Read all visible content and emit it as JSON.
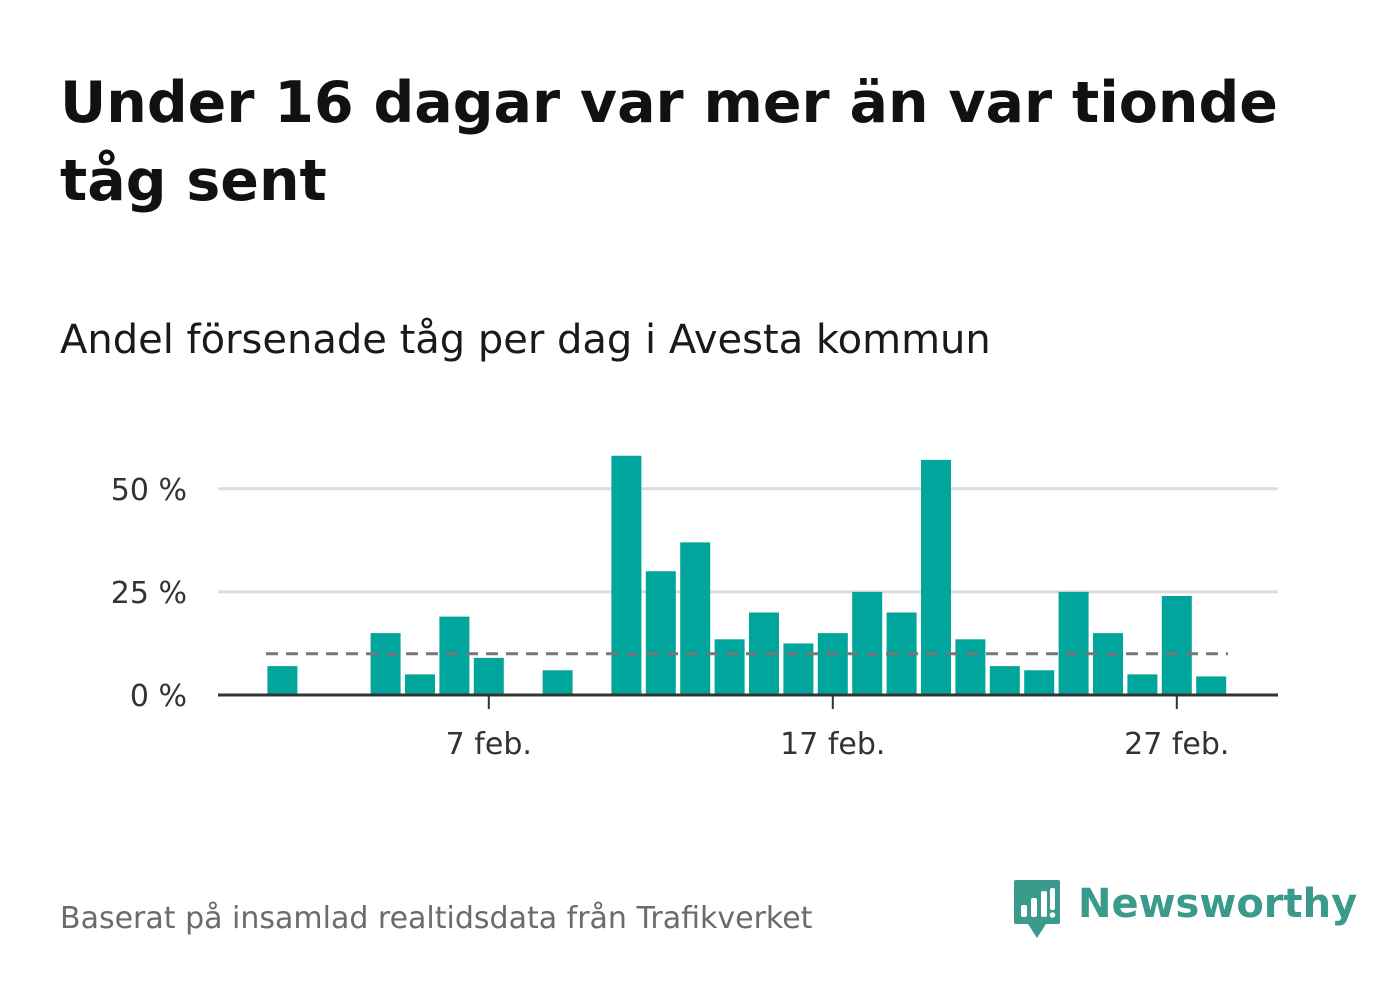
{
  "title": "Under 16 dagar var mer än var tionde tåg sent",
  "subtitle": "Andel försenade tåg per dag i Avesta kommun",
  "source": "Baserat på insamlad realtidsdata från Trafikverket",
  "brand": {
    "name": "Newsworthy",
    "logo_icon": "newsworthy-chart-bubble-icon",
    "color": "#3a9a8c"
  },
  "colors": {
    "bar": "#00a59b",
    "grid": "#dcdcdc",
    "reference_line": "#777777",
    "axis": "#333333"
  },
  "chart_data": {
    "type": "bar",
    "y_unit": "%",
    "ylim": [
      0,
      60
    ],
    "yticks": [
      {
        "value": 0,
        "label": "0 %"
      },
      {
        "value": 25,
        "label": "25 %"
      },
      {
        "value": 50,
        "label": "50 %"
      }
    ],
    "xticks": [
      {
        "value": 7,
        "label": "7 feb."
      },
      {
        "value": 17,
        "label": "17 feb."
      },
      {
        "value": 27,
        "label": "27 feb."
      }
    ],
    "xlim": [
      0,
      29.5
    ],
    "reference_line": {
      "value": 10,
      "style": "dashed"
    },
    "grid": true,
    "legend": false,
    "series": [
      {
        "x": [
          1,
          2,
          3,
          4,
          5,
          6,
          7,
          8,
          9,
          10,
          11,
          12,
          13,
          14,
          15,
          16,
          17,
          18,
          19,
          20,
          21,
          22,
          23,
          24,
          25,
          26,
          27,
          28
        ],
        "values": [
          7,
          0,
          0,
          15,
          5,
          19,
          9,
          0,
          6,
          0,
          58,
          30,
          37,
          13.5,
          20,
          12.5,
          15,
          25,
          20,
          57,
          13.5,
          7,
          6,
          25,
          15,
          5,
          24,
          4.5
        ]
      }
    ]
  }
}
